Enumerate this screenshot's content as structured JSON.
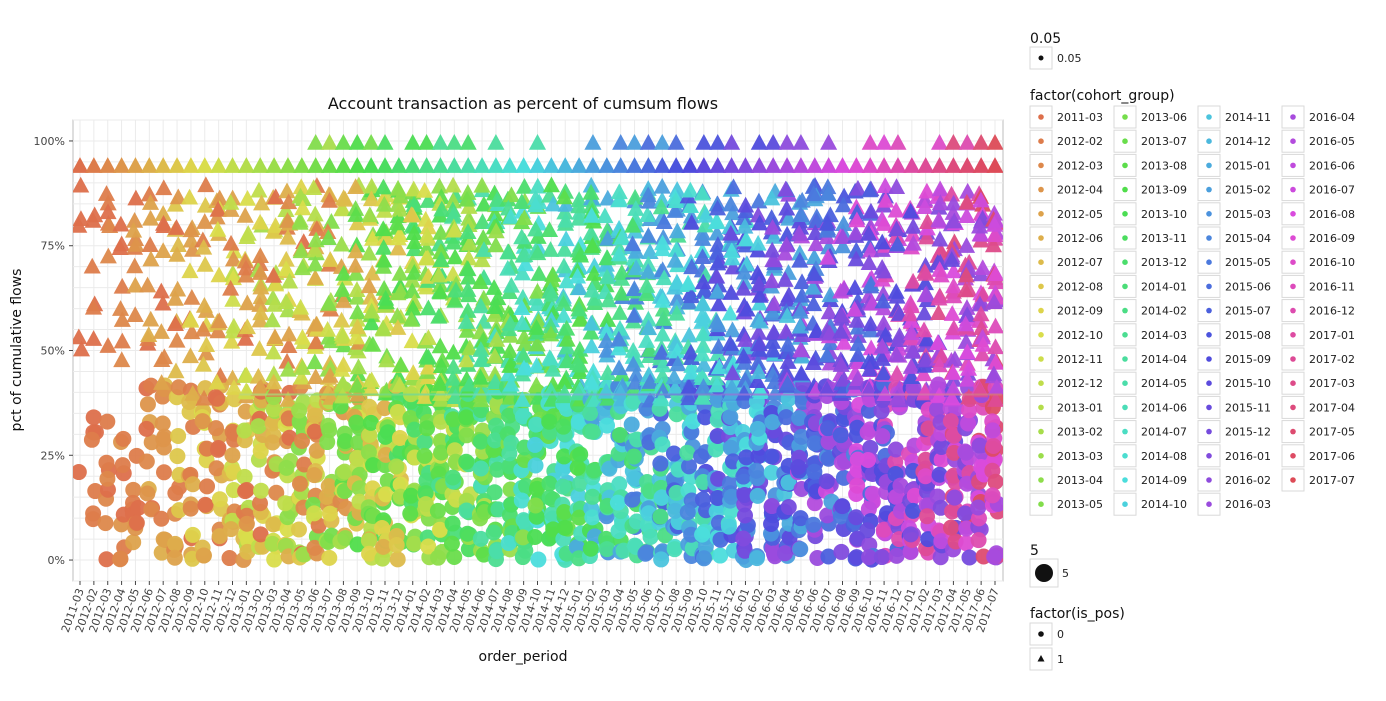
{
  "chart_data": {
    "type": "scatter",
    "title": "Account transaction as percent of cumsum flows",
    "xlabel": "order_period",
    "ylabel": "pct of cumulative flows",
    "y_ticks": [
      "0%",
      "25%",
      "50%",
      "75%",
      "100%"
    ],
    "y_tick_values": [
      0,
      0.25,
      0.5,
      0.75,
      1.0
    ],
    "ylim": [
      -0.05,
      1.05
    ],
    "grid": true,
    "legend_position": "right",
    "x_categories": [
      "2011-03",
      "2012-02",
      "2012-03",
      "2012-04",
      "2012-05",
      "2012-06",
      "2012-07",
      "2012-08",
      "2012-09",
      "2012-10",
      "2012-11",
      "2012-12",
      "2013-01",
      "2013-02",
      "2013-03",
      "2013-04",
      "2013-05",
      "2013-06",
      "2013-07",
      "2013-08",
      "2013-09",
      "2013-10",
      "2013-11",
      "2013-12",
      "2014-01",
      "2014-02",
      "2014-03",
      "2014-04",
      "2014-05",
      "2014-06",
      "2014-07",
      "2014-08",
      "2014-09",
      "2014-10",
      "2014-11",
      "2014-12",
      "2015-01",
      "2015-02",
      "2015-03",
      "2015-04",
      "2015-05",
      "2015-06",
      "2015-07",
      "2015-08",
      "2015-09",
      "2015-10",
      "2015-11",
      "2015-12",
      "2016-01",
      "2016-02",
      "2016-03",
      "2016-04",
      "2016-05",
      "2016-06",
      "2016-07",
      "2016-08",
      "2016-09",
      "2016-10",
      "2016-11",
      "2016-12",
      "2017-01",
      "2017-02",
      "2017-03",
      "2017-04",
      "2017-05",
      "2017-06",
      "2017-07"
    ],
    "legends": {
      "alpha": {
        "title": "0.05",
        "entries": [
          "0.05"
        ]
      },
      "cohort": {
        "title": "factor(cohort_group)",
        "entries": [
          "2011-03",
          "2012-02",
          "2012-03",
          "2012-04",
          "2012-05",
          "2012-06",
          "2012-07",
          "2012-08",
          "2012-09",
          "2012-10",
          "2012-11",
          "2012-12",
          "2013-01",
          "2013-02",
          "2013-03",
          "2013-04",
          "2013-05",
          "2013-06",
          "2013-07",
          "2013-08",
          "2013-09",
          "2013-10",
          "2013-11",
          "2013-12",
          "2014-01",
          "2014-02",
          "2014-03",
          "2014-04",
          "2014-05",
          "2014-06",
          "2014-07",
          "2014-08",
          "2014-09",
          "2014-10",
          "2014-11",
          "2014-12",
          "2015-01",
          "2015-02",
          "2015-03",
          "2015-04",
          "2015-05",
          "2015-06",
          "2015-07",
          "2015-08",
          "2015-09",
          "2015-10",
          "2015-11",
          "2015-12",
          "2016-01",
          "2016-02",
          "2016-03",
          "2016-04",
          "2016-05",
          "2016-06",
          "2016-07",
          "2016-08",
          "2016-09",
          "2016-10",
          "2016-11",
          "2016-12",
          "2017-01",
          "2017-02",
          "2017-03",
          "2017-04",
          "2017-05",
          "2017-06",
          "2017-07"
        ]
      },
      "size": {
        "title": "5",
        "entries": [
          "5"
        ]
      },
      "is_pos": {
        "title": "factor(is_pos)",
        "entries": [
          "0",
          "1"
        ]
      }
    },
    "shapes": {
      "0": "circle",
      "1": "triangle"
    },
    "reference_level": 0.94
  }
}
